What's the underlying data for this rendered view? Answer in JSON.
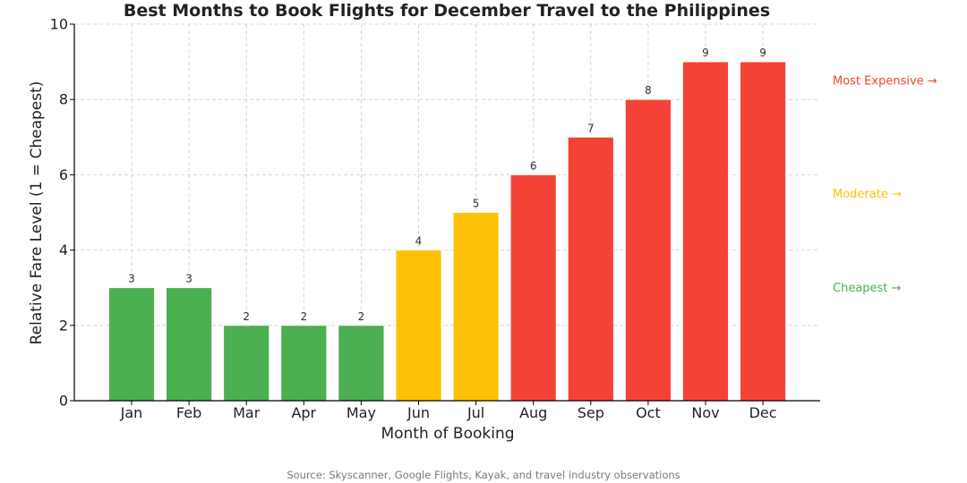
{
  "colors": {
    "cheap": "#4caf50",
    "moderate": "#ffc107",
    "expensive": "#f44336"
  },
  "chart_data": {
    "type": "bar",
    "title": "Best Months to Book Flights for December Travel to the Philippines",
    "xlabel": "Month of Booking",
    "ylabel": "Relative Fare Level (1 = Cheapest)",
    "ylim": [
      0,
      10
    ],
    "yticks": [
      "0",
      "2",
      "4",
      "6",
      "8",
      "10"
    ],
    "categories": [
      "Jan",
      "Feb",
      "Mar",
      "Apr",
      "May",
      "Jun",
      "Jul",
      "Aug",
      "Sep",
      "Oct",
      "Nov",
      "Dec"
    ],
    "values": [
      3,
      3,
      2,
      2,
      2,
      4,
      5,
      6,
      7,
      8,
      9,
      9
    ],
    "value_labels": [
      "3",
      "3",
      "2",
      "2",
      "2",
      "4",
      "5",
      "6",
      "7",
      "8",
      "9",
      "9"
    ],
    "bar_tiers": [
      "cheap",
      "cheap",
      "cheap",
      "cheap",
      "cheap",
      "moderate",
      "moderate",
      "expensive",
      "expensive",
      "expensive",
      "expensive",
      "expensive"
    ],
    "grid": true,
    "annotations": [
      {
        "text": "Most Expensive →",
        "y": 8.5,
        "tier": "expensive"
      },
      {
        "text": "Moderate →",
        "y": 5.5,
        "tier": "moderate"
      },
      {
        "text": "Cheapest →",
        "y": 3.0,
        "tier": "cheap"
      }
    ],
    "source": "Source: Skyscanner, Google Flights, Kayak, and travel industry observations"
  }
}
